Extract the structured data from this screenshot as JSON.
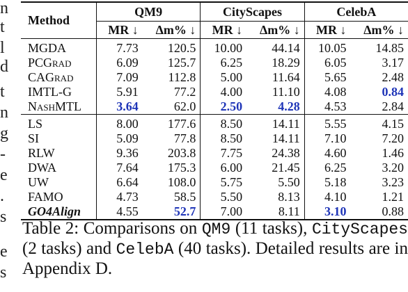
{
  "margin_fragments": [
    "n",
    "t",
    "l",
    "d",
    "t",
    "n",
    "g",
    "-",
    "e",
    ".",
    "s",
    "e",
    "s"
  ],
  "table": {
    "method_header": "Method",
    "groups": [
      "QM9",
      "CityScapes",
      "CelebA"
    ],
    "sub_headers": [
      "MR ↓",
      "Δm% ↓",
      "MR ↓",
      "Δm% ↓",
      "MR ↓",
      "Δm% ↓"
    ],
    "sections": [
      {
        "rows": [
          {
            "method": "MGDA",
            "cells": [
              "7.73",
              "120.5",
              "10.00",
              "44.14",
              "10.05",
              "14.85"
            ]
          },
          {
            "method": "PCGrad",
            "cells": [
              "6.09",
              "125.7",
              "6.25",
              "18.29",
              "6.05",
              "3.17"
            ]
          },
          {
            "method": "CAGrad",
            "cells": [
              "7.09",
              "112.8",
              "5.00",
              "11.64",
              "5.65",
              "2.48"
            ]
          },
          {
            "method": "IMTL-G",
            "cells": [
              "5.91",
              "77.2",
              "4.00",
              "11.10",
              "4.08",
              "0.84"
            ]
          },
          {
            "method": "NashMTL",
            "cells": [
              "3.64",
              "62.0",
              "2.50",
              "4.28",
              "4.53",
              "2.84"
            ]
          }
        ]
      },
      {
        "rows": [
          {
            "method": "LS",
            "cells": [
              "8.00",
              "177.6",
              "8.50",
              "14.11",
              "5.55",
              "4.15"
            ]
          },
          {
            "method": "SI",
            "cells": [
              "5.09",
              "77.8",
              "8.50",
              "14.11",
              "7.10",
              "7.20"
            ]
          },
          {
            "method": "RLW",
            "cells": [
              "9.36",
              "203.8",
              "7.75",
              "24.38",
              "4.60",
              "1.46"
            ]
          },
          {
            "method": "DWA",
            "cells": [
              "7.64",
              "175.3",
              "6.00",
              "21.45",
              "6.25",
              "3.20"
            ]
          },
          {
            "method": "UW",
            "cells": [
              "6.64",
              "108.0",
              "5.75",
              "5.50",
              "5.18",
              "3.23"
            ]
          },
          {
            "method": "FAMO",
            "cells": [
              "4.73",
              "58.5",
              "5.50",
              "8.13",
              "4.10",
              "1.21"
            ]
          },
          {
            "method": "GO4Align",
            "cells": [
              "4.55",
              "52.7",
              "7.00",
              "8.11",
              "3.10",
              "0.88"
            ]
          }
        ]
      }
    ],
    "best_color": "#1f35b8"
  },
  "caption": {
    "prefix": "Table 2:  Comparisons on ",
    "qm9": "QM9",
    "qm9_detail": " (11 tasks), ",
    "cityscapes": "CityScapes",
    "city_detail": " (2 tasks) and ",
    "celeba": "CelebA",
    "tail": " (40 tasks). Detailed results are in Appendix D."
  }
}
